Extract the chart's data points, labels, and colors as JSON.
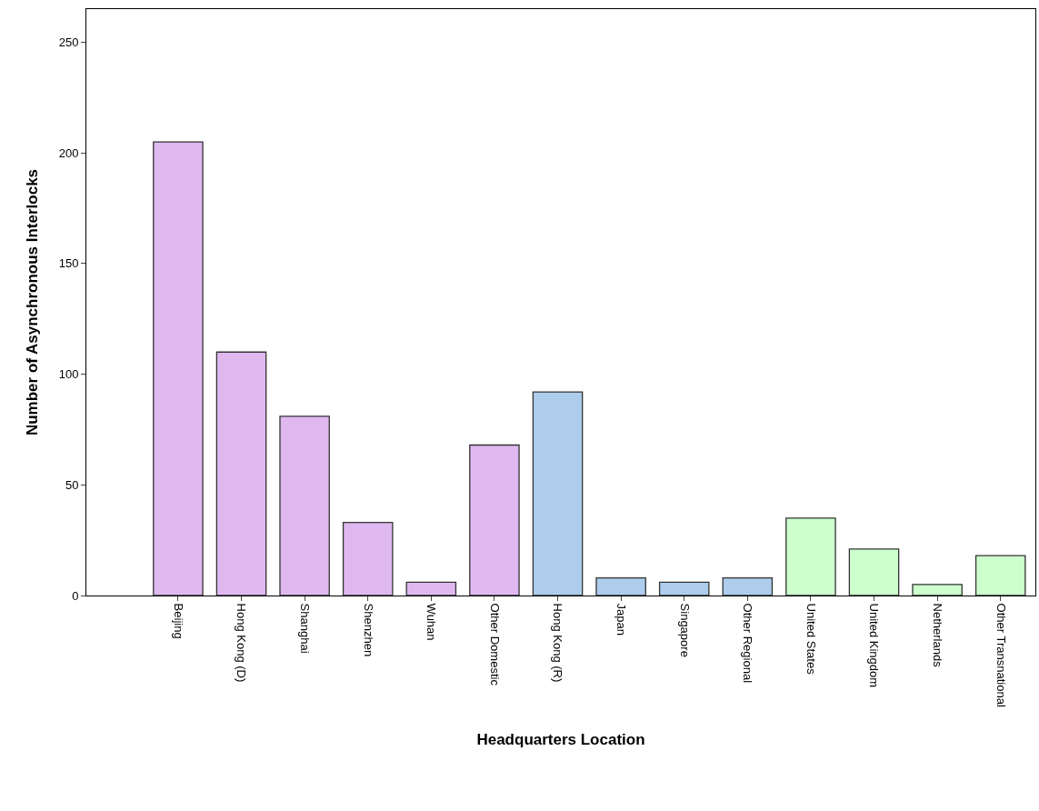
{
  "chart_data": {
    "type": "bar",
    "xlabel": "Headquarters Location",
    "ylabel": "Number of Asynchronous Interlocks",
    "categories": [
      "Beijing",
      "Hong Kong (D)",
      "Shanghai",
      "Shenzhen",
      "Wuhan",
      "Other Domestic",
      "Hong Kong (R)",
      "Japan",
      "Singapore",
      "Other Regional",
      "United States",
      "United Kingdom",
      "Netherlands",
      "Other Transnational"
    ],
    "values": [
      205,
      110,
      81,
      33,
      6,
      68,
      92,
      8,
      6,
      8,
      35,
      21,
      5,
      18
    ],
    "colors": [
      "#dfb8f0",
      "#dfb8f0",
      "#dfb8f0",
      "#dfb8f0",
      "#dfb8f0",
      "#dfb8f0",
      "#aecdec",
      "#aecdec",
      "#aecdec",
      "#aecdec",
      "#ccffcc",
      "#ccffcc",
      "#ccffcc",
      "#ccffcc"
    ],
    "ylim": [
      0,
      265
    ],
    "yticks": [
      0,
      50,
      100,
      150,
      200,
      250
    ],
    "grid": false
  }
}
